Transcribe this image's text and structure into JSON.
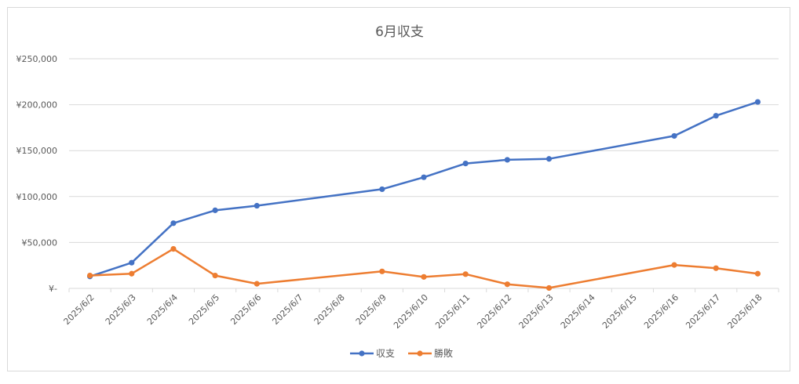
{
  "chart_data": {
    "type": "line",
    "title": "6月収支",
    "xlabel": "",
    "ylabel": "",
    "categories": [
      "2025/6/2",
      "2025/6/3",
      "2025/6/4",
      "2025/6/5",
      "2025/6/6",
      "2025/6/7",
      "2025/6/8",
      "2025/6/9",
      "2025/6/10",
      "2025/6/11",
      "2025/6/12",
      "2025/6/13",
      "2025/6/14",
      "2025/6/15",
      "2025/6/16",
      "2025/6/17",
      "2025/6/18"
    ],
    "y_tick_labels": [
      "¥-",
      "¥50,000",
      "¥100,000",
      "¥150,000",
      "¥200,000",
      "¥250,000"
    ],
    "ylim": [
      0,
      250000
    ],
    "grid": true,
    "legend_position": "bottom",
    "series": [
      {
        "name": "収支",
        "color": "#4472c4",
        "values": [
          13000,
          28000,
          71000,
          85000,
          90000,
          null,
          null,
          108000,
          121000,
          136000,
          140000,
          141000,
          null,
          null,
          166000,
          188000,
          203000
        ]
      },
      {
        "name": "勝敗",
        "color": "#ed7d31",
        "values": [
          14000,
          16000,
          43000,
          14000,
          5000,
          null,
          null,
          18500,
          12500,
          15500,
          4500,
          500,
          null,
          null,
          25500,
          22000,
          16000
        ]
      }
    ]
  }
}
